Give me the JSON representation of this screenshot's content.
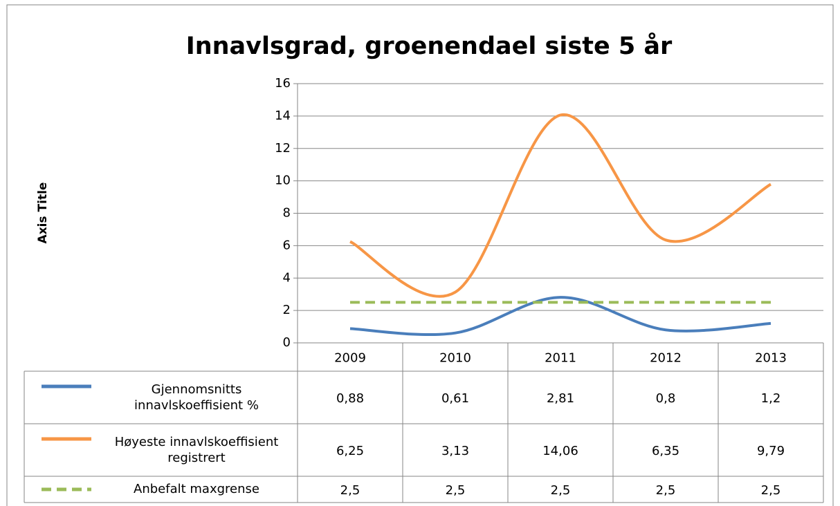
{
  "chart_data": {
    "type": "line",
    "title": "Innavlsgrad, groenendael siste 5 år",
    "y_label": "Axis Title",
    "categories": [
      "2009",
      "2010",
      "2011",
      "2012",
      "2013"
    ],
    "series": [
      {
        "name": "Gjennomsnitts innavlskoeffisient %",
        "color": "#4a7ebb",
        "dashed": false,
        "values": [
          0.88,
          0.61,
          2.81,
          0.8,
          1.2
        ],
        "value_labels": [
          "0,88",
          "0,61",
          "2,81",
          "0,8",
          "1,2"
        ]
      },
      {
        "name": "Høyeste innavlskoeffisient registrert",
        "color": "#f79646",
        "dashed": false,
        "values": [
          6.25,
          3.13,
          14.06,
          6.35,
          9.79
        ],
        "value_labels": [
          "6,25",
          "3,13",
          "14,06",
          "6,35",
          "9,79"
        ]
      },
      {
        "name": "Anbefalt maxgrense",
        "color": "#9bbb59",
        "dashed": true,
        "values": [
          2.5,
          2.5,
          2.5,
          2.5,
          2.5
        ],
        "value_labels": [
          "2,5",
          "2,5",
          "2,5",
          "2,5",
          "2,5"
        ]
      }
    ],
    "ylim": [
      0,
      16
    ],
    "yticks": [
      0,
      2,
      4,
      6,
      8,
      10,
      12,
      14,
      16
    ],
    "grid": true,
    "smooth": true
  }
}
